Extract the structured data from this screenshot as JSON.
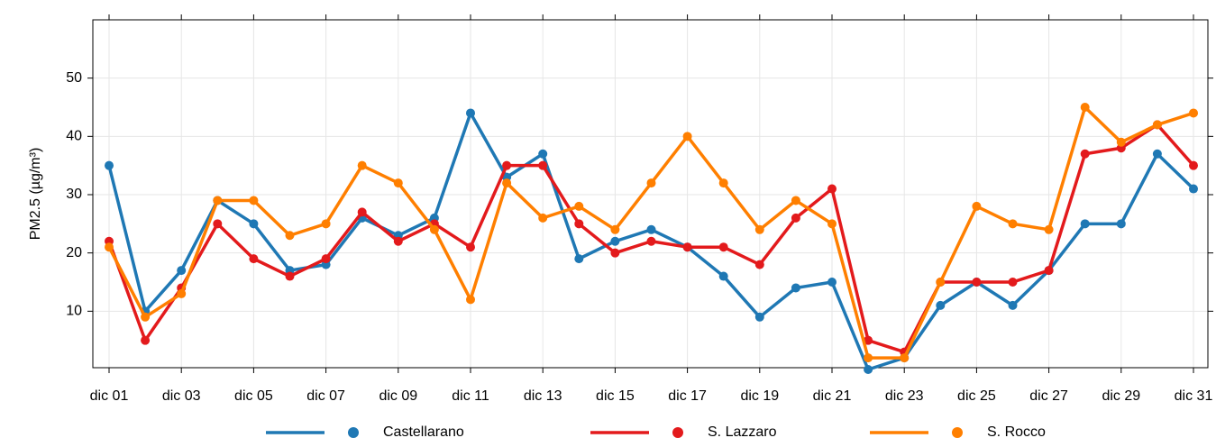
{
  "chart_data": {
    "type": "line",
    "y_label": "PM2.5 (µg/m³)",
    "categories": [
      "dic 01",
      null,
      "dic 03",
      null,
      "dic 05",
      null,
      "dic 07",
      null,
      "dic 09",
      null,
      "dic 11",
      null,
      "dic 13",
      null,
      "dic 15",
      null,
      "dic 17",
      null,
      "dic 19",
      null,
      "dic 21",
      null,
      "dic 23",
      null,
      "dic 25",
      null,
      "dic 27",
      null,
      "dic 29",
      null,
      "dic 31"
    ],
    "series": [
      {
        "name": "Castellarano",
        "color": "#1f78b4",
        "values": [
          35,
          10,
          17,
          29,
          25,
          17,
          18,
          26,
          23,
          26,
          44,
          33,
          37,
          19,
          22,
          24,
          21,
          16,
          9,
          14,
          15,
          0,
          2,
          11,
          15,
          11,
          17,
          25,
          25,
          37,
          31
        ]
      },
      {
        "name": "S. Lazzaro",
        "color": "#e31a1c",
        "values": [
          22,
          5,
          14,
          25,
          19,
          16,
          19,
          27,
          22,
          25,
          21,
          35,
          35,
          25,
          20,
          22,
          21,
          21,
          18,
          26,
          31,
          5,
          3,
          15,
          15,
          15,
          17,
          37,
          38,
          42,
          35
        ]
      },
      {
        "name": "S. Rocco",
        "color": "#ff7f00",
        "values": [
          21,
          9,
          13,
          29,
          29,
          23,
          25,
          35,
          32,
          24,
          12,
          32,
          26,
          28,
          24,
          32,
          40,
          32,
          24,
          29,
          25,
          2,
          2,
          15,
          28,
          25,
          24,
          45,
          39,
          42,
          44
        ]
      }
    ],
    "ylim": [
      0,
      60
    ],
    "yticks": [
      10,
      20,
      30,
      40,
      50
    ],
    "grid": true,
    "legend": "bottom"
  }
}
